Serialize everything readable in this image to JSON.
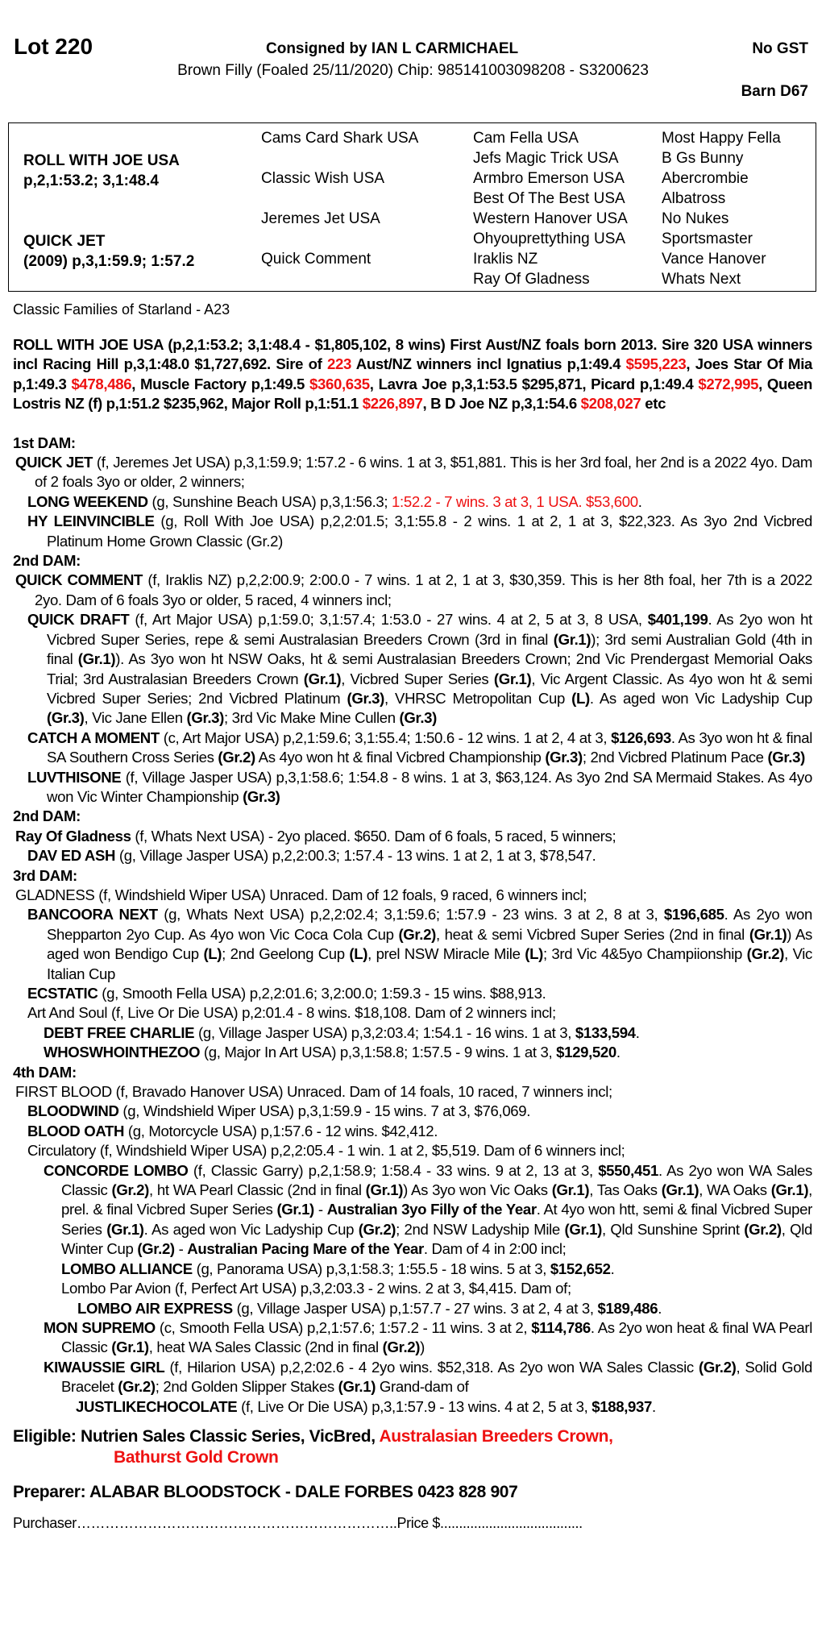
{
  "header": {
    "lot": "Lot 220",
    "consigned": "Consigned by IAN L CARMICHAEL",
    "gst": "No GST",
    "description": "Brown Filly (Foaled 25/11/2020) Chip: 985141003098208 - S3200623",
    "barn": "Barn D67"
  },
  "pedigree": {
    "sire": "ROLL WITH JOE USA",
    "sire_record": "p,2,1:53.2; 3,1:48.4",
    "dam": "QUICK JET",
    "dam_record": "(2009) p,3,1:59.9; 1:57.2",
    "gen2": [
      "Cams Card Shark USA",
      "Classic Wish USA",
      "Jeremes Jet USA",
      "Quick Comment"
    ],
    "gen3": [
      "Cam Fella USA",
      "Jefs Magic Trick USA",
      "Armbro Emerson USA",
      "Best Of The Best USA",
      "Western Hanover USA",
      "Ohyouprettything USA",
      "Iraklis NZ",
      "Ray Of Gladness"
    ],
    "gen4": [
      "Most Happy Fella",
      "B Gs Bunny",
      "Abercrombie",
      "Albatross",
      "No Nukes",
      "Sportsmaster",
      "Vance Hanover",
      "Whats Next"
    ]
  },
  "family": "Classic Families of Starland - A23",
  "colors": {
    "highlight": "#ee1111"
  },
  "paragraphs": [
    {
      "cls": "p sire",
      "segs": [
        [
          "ROLL WITH JOE USA (p,2,1:53.2; 3,1:48.4 - $1,805,102, 8 wins) First Aust/NZ foals born 2013. Sire 320 USA winners incl Racing Hill p,3,1:48.0 $1,727,692. Sire of ",
          ""
        ],
        [
          "223",
          "r"
        ],
        [
          " Aust/NZ winners  incl Ignatius p,1:49.4 ",
          ""
        ],
        [
          "$595,223",
          "r"
        ],
        [
          ", Joes Star Of Mia p,1:49.3 ",
          ""
        ],
        [
          "$478,486",
          "r"
        ],
        [
          ", Muscle Factory p,1:49.5 ",
          ""
        ],
        [
          "$360,635",
          "r"
        ],
        [
          ", Lavra Joe p,3,1:53.5 $295,871, Picard p,1:49.4 ",
          ""
        ],
        [
          "$272,995",
          "r"
        ],
        [
          ", Queen Lostris NZ (f) p,1:51.2 $235,962, Major Roll p,1:51.1 ",
          ""
        ],
        [
          "$226,897",
          "r"
        ],
        [
          ", B D Joe NZ p,3,1:54.6 ",
          ""
        ],
        [
          "$208,027",
          "r"
        ],
        [
          " etc",
          ""
        ]
      ]
    },
    {
      "cls": "h",
      "segs": [
        [
          "1st DAM:",
          ""
        ]
      ]
    },
    {
      "cls": "p hang0",
      "segs": [
        [
          "QUICK JET",
          "b"
        ],
        [
          " (f, Jeremes Jet USA) p,3,1:59.9; 1:57.2 - 6 wins. 1 at 3, $51,881. This is her 3rd foal, her 2nd is a 2022 4yo. Dam of 2 foals 3yo or older, 2 winners;",
          ""
        ]
      ]
    },
    {
      "cls": "p hang1",
      "segs": [
        [
          "LONG WEEKEND",
          "b"
        ],
        [
          " (g, Sunshine Beach USA) p,3,1:56.3; ",
          ""
        ],
        [
          "1:52.2 - 7 wins. 3 at 3, 1 USA. $53,600",
          "r"
        ],
        [
          ".",
          ""
        ]
      ]
    },
    {
      "cls": "p hang1",
      "segs": [
        [
          "HY LEINVINCIBLE",
          "b"
        ],
        [
          " (g, Roll With Joe USA) p,2,2:01.5; 3,1:55.8 - 2 wins. 1 at 2, 1 at 3, $22,323. As 3yo 2nd Vicbred Platinum Home Grown Classic (Gr.2)",
          ""
        ]
      ]
    },
    {
      "cls": "h",
      "segs": [
        [
          "2nd DAM:",
          ""
        ]
      ]
    },
    {
      "cls": "p hang0",
      "segs": [
        [
          "QUICK COMMENT",
          "b"
        ],
        [
          " (f, Iraklis NZ) p,2,2:00.9; 2:00.0 - 7 wins. 1 at 2, 1 at 3, $30,359. This is her 8th foal, her 7th is a 2022 2yo. Dam of 6 foals 3yo or older, 5 raced, 4 winners incl;",
          ""
        ]
      ]
    },
    {
      "cls": "p hang1",
      "segs": [
        [
          "QUICK DRAFT",
          "b"
        ],
        [
          " (f, Art Major USA) p,1:59.0; 3,1:57.4; 1:53.0 - 27 wins. 4 at 2, 5 at 3, 8 USA, ",
          ""
        ],
        [
          "$401,199",
          "b"
        ],
        [
          ". As 2yo won ht Vicbred Super Series, repe & semi Australasian Breeders Crown (3rd in final ",
          ""
        ],
        [
          "(Gr.1)",
          "b"
        ],
        [
          "); 3rd semi Australian Gold (4th in final ",
          ""
        ],
        [
          "(Gr.1)",
          "b"
        ],
        [
          "). As 3yo won ht NSW Oaks, ht & semi Australasian Breeders Crown; 2nd Vic Prendergast Memorial Oaks Trial; 3rd Australasian Breeders Crown ",
          ""
        ],
        [
          "(Gr.1)",
          "b"
        ],
        [
          ", Vicbred Super Series ",
          ""
        ],
        [
          "(Gr.1)",
          "b"
        ],
        [
          ", Vic Argent Classic. As 4yo won ht & semi Vicbred Super Series; 2nd Vicbred Platinum ",
          ""
        ],
        [
          "(Gr.3)",
          "b"
        ],
        [
          ", VHRSC Metropolitan Cup ",
          ""
        ],
        [
          "(L)",
          "b"
        ],
        [
          ". As aged won Vic Ladyship Cup ",
          ""
        ],
        [
          "(Gr.3)",
          "b"
        ],
        [
          ", Vic Jane Ellen ",
          ""
        ],
        [
          "(Gr.3)",
          "b"
        ],
        [
          "; 3rd Vic Make Mine Cullen ",
          ""
        ],
        [
          "(Gr.3)",
          "b"
        ]
      ]
    },
    {
      "cls": "p hang1",
      "segs": [
        [
          "CATCH A MOMENT",
          "b"
        ],
        [
          " (c, Art Major USA) p,2,1:59.6; 3,1:55.4; 1:50.6 - 12 wins. 1 at 2, 4 at 3, ",
          ""
        ],
        [
          "$126,693",
          "b"
        ],
        [
          ". As 3yo won ht & final SA Southern Cross Series ",
          ""
        ],
        [
          "(Gr.2)",
          "b"
        ],
        [
          " As 4yo won ht & final Vicbred Championship ",
          ""
        ],
        [
          "(Gr.3)",
          "b"
        ],
        [
          "; 2nd Vicbred Platinum Pace ",
          ""
        ],
        [
          "(Gr.3)",
          "b"
        ]
      ]
    },
    {
      "cls": "p hang1",
      "segs": [
        [
          "LUVTHISONE",
          "b"
        ],
        [
          " (f, Village Jasper USA) p,3,1:58.6; 1:54.8 - 8 wins. 1 at 3, $63,124. As 3yo 2nd SA Mermaid Stakes. As 4yo won Vic Winter Championship ",
          ""
        ],
        [
          "(Gr.3)",
          "b"
        ]
      ]
    },
    {
      "cls": "h",
      "segs": [
        [
          "2nd DAM:",
          ""
        ]
      ]
    },
    {
      "cls": "p hang0",
      "segs": [
        [
          "Ray Of Gladness",
          "b"
        ],
        [
          " (f, Whats Next USA) - 2yo placed. $650. Dam of 6 foals, 5 raced, 5 winners;",
          ""
        ]
      ]
    },
    {
      "cls": "p hang1",
      "segs": [
        [
          "DAV ED ASH",
          "b"
        ],
        [
          " (g, Village Jasper USA) p,2,2:00.3; 1:57.4 - 13 wins. 1 at 2, 1 at 3, $78,547.",
          ""
        ]
      ]
    },
    {
      "cls": "h",
      "segs": [
        [
          "3rd DAM:",
          ""
        ]
      ]
    },
    {
      "cls": "p hang0",
      "segs": [
        [
          "GLADNESS (f, Windshield Wiper USA) Unraced. Dam of 12 foals, 9 raced, 6 winners incl;",
          ""
        ]
      ]
    },
    {
      "cls": "p hang1",
      "segs": [
        [
          "BANCOORA NEXT",
          "b"
        ],
        [
          " (g, Whats Next USA) p,2,2:02.4; 3,1:59.6; 1:57.9 - 23 wins. 3 at 2, 8 at 3, ",
          ""
        ],
        [
          "$196,685",
          "b"
        ],
        [
          ". As 2yo won Shepparton 2yo Cup. As 4yo won Vic Coca Cola Cup ",
          ""
        ],
        [
          "(Gr.2)",
          "b"
        ],
        [
          ", heat & semi Vicbred Super Series (2nd in final ",
          ""
        ],
        [
          "(Gr.1)",
          "b"
        ],
        [
          ") As aged won Bendigo Cup ",
          ""
        ],
        [
          "(L)",
          "b"
        ],
        [
          "; 2nd Geelong Cup ",
          ""
        ],
        [
          "(L)",
          "b"
        ],
        [
          ", prel NSW Miracle Mile ",
          ""
        ],
        [
          "(L)",
          "b"
        ],
        [
          "; 3rd Vic 4&5yo Champiionship ",
          ""
        ],
        [
          "(Gr.2)",
          "b"
        ],
        [
          ", Vic Italian Cup",
          ""
        ]
      ]
    },
    {
      "cls": "p hang1",
      "segs": [
        [
          "ECSTATIC",
          "b"
        ],
        [
          " (g, Smooth Fella USA) p,2,2:01.6; 3,2:00.0; 1:59.3 - 15 wins. $88,913.",
          ""
        ]
      ]
    },
    {
      "cls": "p hang1",
      "segs": [
        [
          "Art And Soul (f, Live Or Die USA) p,2:01.4 - 8 wins. $18,108. Dam of 2 winners incl;",
          ""
        ]
      ]
    },
    {
      "cls": "p hang2",
      "segs": [
        [
          "DEBT FREE CHARLIE",
          "b"
        ],
        [
          " (g, Village Jasper USA) p,3,2:03.4; 1:54.1 - 16 wins. 1 at 3, ",
          ""
        ],
        [
          "$133,594",
          "b"
        ],
        [
          ".",
          ""
        ]
      ]
    },
    {
      "cls": "p hang2",
      "segs": [
        [
          "WHOSWHOINTHEZOO",
          "b"
        ],
        [
          " (g, Major In Art USA) p,3,1:58.8; 1:57.5 - 9 wins. 1 at 3, ",
          ""
        ],
        [
          "$129,520",
          "b"
        ],
        [
          ".",
          ""
        ]
      ]
    },
    {
      "cls": "h",
      "segs": [
        [
          "4th DAM:",
          ""
        ]
      ]
    },
    {
      "cls": "p hang0",
      "segs": [
        [
          "FIRST BLOOD (f, Bravado Hanover USA) Unraced. Dam of 14 foals, 10 raced, 7 winners incl;",
          ""
        ]
      ]
    },
    {
      "cls": "p hang1",
      "segs": [
        [
          "BLOODWIND",
          "b"
        ],
        [
          " (g, Windshield Wiper USA) p,3,1:59.9 - 15 wins. 7 at 3, $76,069.",
          ""
        ]
      ]
    },
    {
      "cls": "p hang1",
      "segs": [
        [
          "BLOOD OATH",
          "b"
        ],
        [
          " (g, Motorcycle USA) p,1:57.6 - 12 wins. $42,412.",
          ""
        ]
      ]
    },
    {
      "cls": "p hang1",
      "segs": [
        [
          "Circulatory (f, Windshield Wiper USA) p,2,2:05.4 - 1 win. 1 at 2, $5,519. Dam of 6 winners incl;",
          ""
        ]
      ]
    },
    {
      "cls": "p hang2",
      "segs": [
        [
          "CONCORDE LOMBO",
          "b"
        ],
        [
          " (f, Classic Garry) p,2,1:58.9; 1:58.4 - 33 wins. 9 at 2, 13 at 3, ",
          ""
        ],
        [
          "$550,451",
          "b"
        ],
        [
          ". As 2yo won WA Sales Classic ",
          ""
        ],
        [
          "(Gr.2)",
          "b"
        ],
        [
          ", ht WA Pearl Classic (2nd in final ",
          ""
        ],
        [
          "(Gr.1)",
          "b"
        ],
        [
          ") As 3yo won Vic Oaks ",
          ""
        ],
        [
          "(Gr.1)",
          "b"
        ],
        [
          ", Tas Oaks ",
          ""
        ],
        [
          "(Gr.1)",
          "b"
        ],
        [
          ", WA Oaks ",
          ""
        ],
        [
          "(Gr.1)",
          "b"
        ],
        [
          ", prel. & final Vicbred Super Series ",
          ""
        ],
        [
          "(Gr.1)",
          "b"
        ],
        [
          " - ",
          ""
        ],
        [
          "Australian 3yo Filly of the Year",
          "b"
        ],
        [
          ". At 4yo won htt, semi & final Vicbred Super Series ",
          ""
        ],
        [
          "(Gr.1)",
          "b"
        ],
        [
          ". As aged won Vic Ladyship Cup ",
          ""
        ],
        [
          "(Gr.2)",
          "b"
        ],
        [
          "; 2nd NSW Ladyship Mile ",
          ""
        ],
        [
          "(Gr.1)",
          "b"
        ],
        [
          ", Qld Sunshine Sprint ",
          ""
        ],
        [
          "(Gr.2)",
          "b"
        ],
        [
          ", Qld Winter Cup ",
          ""
        ],
        [
          "(Gr.2)",
          "b"
        ],
        [
          " - ",
          ""
        ],
        [
          "Australian Pacing Mare of the Year",
          "b"
        ],
        [
          ". Dam of 4 in 2:00 incl;",
          ""
        ]
      ]
    },
    {
      "cls": "p hang3",
      "segs": [
        [
          "LOMBO ALLIANCE",
          "b"
        ],
        [
          " (g, Panorama USA) p,3,1:58.3; 1:55.5 - 18 wins. 5 at 3, ",
          ""
        ],
        [
          "$152,652",
          "b"
        ],
        [
          ".",
          ""
        ]
      ]
    },
    {
      "cls": "p hang3",
      "segs": [
        [
          "Lombo Par Avion (f, Perfect Art USA) p,3,2:03.3 - 2 wins. 2 at 3, $4,415. Dam of;",
          ""
        ]
      ]
    },
    {
      "cls": "p l3",
      "style": "padding-left:80px",
      "segs": [
        [
          "LOMBO AIR EXPRESS",
          "b"
        ],
        [
          " (g, Village Jasper USA) p,1:57.7 - 27 wins. 3 at 2, 4 at 3, ",
          ""
        ],
        [
          "$189,486",
          "b"
        ],
        [
          ".",
          ""
        ]
      ]
    },
    {
      "cls": "p hang2",
      "segs": [
        [
          "MON SUPREMO",
          "b"
        ],
        [
          " (c, Smooth Fella USA) p,2,1:57.6; 1:57.2 - 11 wins. 3 at 2, ",
          ""
        ],
        [
          "$114,786",
          "b"
        ],
        [
          ". As 2yo won heat & final WA Pearl Classic ",
          ""
        ],
        [
          "(Gr.1)",
          "b"
        ],
        [
          ", heat WA Sales Classic (2nd in final ",
          ""
        ],
        [
          "(Gr.2)",
          "b"
        ],
        [
          ")",
          ""
        ]
      ]
    },
    {
      "cls": "p hang2",
      "segs": [
        [
          "KIWAUSSIE GIRL",
          "b"
        ],
        [
          " (f, Hilarion USA) p,2,2:02.6 - 4 2yo wins. $52,318. As 2yo won WA Sales Classic ",
          ""
        ],
        [
          "(Gr.2)",
          "b"
        ],
        [
          ", Solid Gold Bracelet ",
          ""
        ],
        [
          "(Gr.2)",
          "b"
        ],
        [
          "; 2nd Golden Slipper Stakes ",
          ""
        ],
        [
          "(Gr.1)",
          "b"
        ],
        [
          " Grand-dam of",
          ""
        ]
      ]
    },
    {
      "cls": "p",
      "style": "padding-left:78px",
      "segs": [
        [
          "JUSTLIKECHOCOLATE",
          "b"
        ],
        [
          " (f, Live Or Die USA) p,3,1:57.9 - 13 wins. 4 at 2, 5 at 3, ",
          ""
        ],
        [
          "$188,937",
          "b"
        ],
        [
          ".",
          ""
        ]
      ]
    }
  ],
  "eligible": {
    "label": "Eligible:",
    "black": "Nutrien Sales Classic Series, VicBred,",
    "red1": "Australasian Breeders Crown,",
    "red2": "Bathurst Gold Crown"
  },
  "preparer": "Preparer: ALABAR BLOODSTOCK - DALE FORBES 0423 828 907",
  "purchaser": "Purchaser…………………………………………………………..Price $......................................"
}
